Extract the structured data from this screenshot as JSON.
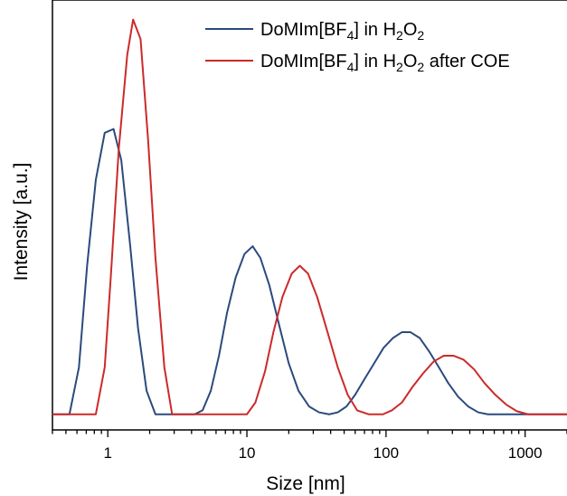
{
  "chart_data": {
    "type": "line",
    "xlabel": "Size [nm]",
    "ylabel": "Intensity [a.u.]",
    "xscale": "log",
    "xlim": [
      0.4,
      2000
    ],
    "ylim": [
      -4,
      106
    ],
    "x_ticks": [
      {
        "value": 1,
        "label": "1"
      },
      {
        "value": 10,
        "label": "10"
      },
      {
        "value": 100,
        "label": "100"
      },
      {
        "value": 1000,
        "label": "1000"
      }
    ],
    "y_ticks_shown": false,
    "grid": false,
    "legend_position": "top-right",
    "series": [
      {
        "name": "DoMIm[BF4] in H2O2",
        "legend_parts": [
          {
            "text": "DoMIm[BF",
            "sub": false
          },
          {
            "text": "4",
            "sub": true
          },
          {
            "text": "] in H",
            "sub": false
          },
          {
            "text": "2",
            "sub": true
          },
          {
            "text": "O",
            "sub": false
          },
          {
            "text": "2",
            "sub": true
          }
        ],
        "color": "#2b4a7c",
        "points": [
          [
            0.3,
            0
          ],
          [
            0.53,
            0
          ],
          [
            0.62,
            12
          ],
          [
            0.71,
            38
          ],
          [
            0.82,
            60
          ],
          [
            0.95,
            72
          ],
          [
            1.1,
            73
          ],
          [
            1.25,
            65
          ],
          [
            1.45,
            43
          ],
          [
            1.65,
            22
          ],
          [
            1.9,
            6
          ],
          [
            2.2,
            0
          ],
          [
            4.2,
            0
          ],
          [
            4.8,
            1
          ],
          [
            5.5,
            6
          ],
          [
            6.3,
            15
          ],
          [
            7.2,
            26
          ],
          [
            8.3,
            35
          ],
          [
            9.6,
            41
          ],
          [
            11,
            43
          ],
          [
            12.5,
            40
          ],
          [
            14.5,
            33
          ],
          [
            17,
            23
          ],
          [
            20,
            13
          ],
          [
            23.5,
            6
          ],
          [
            28,
            2
          ],
          [
            33,
            0.5
          ],
          [
            39,
            0
          ],
          [
            45,
            0.5
          ],
          [
            52,
            2
          ],
          [
            60,
            5
          ],
          [
            70,
            9
          ],
          [
            82,
            13
          ],
          [
            96,
            17
          ],
          [
            112,
            19.5
          ],
          [
            130,
            21
          ],
          [
            150,
            21
          ],
          [
            175,
            19.5
          ],
          [
            205,
            16
          ],
          [
            240,
            12
          ],
          [
            280,
            8
          ],
          [
            330,
            4.5
          ],
          [
            390,
            2
          ],
          [
            460,
            0.5
          ],
          [
            540,
            0
          ],
          [
            2000,
            0
          ]
        ]
      },
      {
        "name": "DoMIm[BF4] in H2O2 after COE",
        "legend_parts": [
          {
            "text": "DoMIm[BF",
            "sub": false
          },
          {
            "text": "4",
            "sub": true
          },
          {
            "text": "] in H",
            "sub": false
          },
          {
            "text": "2",
            "sub": true
          },
          {
            "text": "O",
            "sub": false
          },
          {
            "text": "2",
            "sub": true
          },
          {
            "text": " after COE",
            "sub": false
          }
        ],
        "color": "#cc2a2a",
        "points": [
          [
            0.3,
            0
          ],
          [
            0.82,
            0
          ],
          [
            0.95,
            12
          ],
          [
            1.05,
            35
          ],
          [
            1.2,
            68
          ],
          [
            1.38,
            92
          ],
          [
            1.52,
            101
          ],
          [
            1.72,
            96
          ],
          [
            1.95,
            70
          ],
          [
            2.2,
            40
          ],
          [
            2.55,
            12
          ],
          [
            2.9,
            0
          ],
          [
            10,
            0
          ],
          [
            11.5,
            3
          ],
          [
            13.5,
            11
          ],
          [
            15.5,
            21
          ],
          [
            18,
            30
          ],
          [
            21,
            36
          ],
          [
            24,
            38
          ],
          [
            27.5,
            36
          ],
          [
            32,
            30
          ],
          [
            38,
            21
          ],
          [
            45,
            12
          ],
          [
            53,
            5
          ],
          [
            62,
            1
          ],
          [
            75,
            0
          ],
          [
            95,
            0
          ],
          [
            110,
            1
          ],
          [
            130,
            3
          ],
          [
            155,
            7
          ],
          [
            185,
            10.5
          ],
          [
            220,
            13.5
          ],
          [
            260,
            15
          ],
          [
            305,
            15
          ],
          [
            360,
            14
          ],
          [
            430,
            11.5
          ],
          [
            510,
            8
          ],
          [
            610,
            5
          ],
          [
            730,
            2.5
          ],
          [
            870,
            0.8
          ],
          [
            1050,
            0
          ],
          [
            2000,
            0
          ]
        ]
      }
    ]
  }
}
